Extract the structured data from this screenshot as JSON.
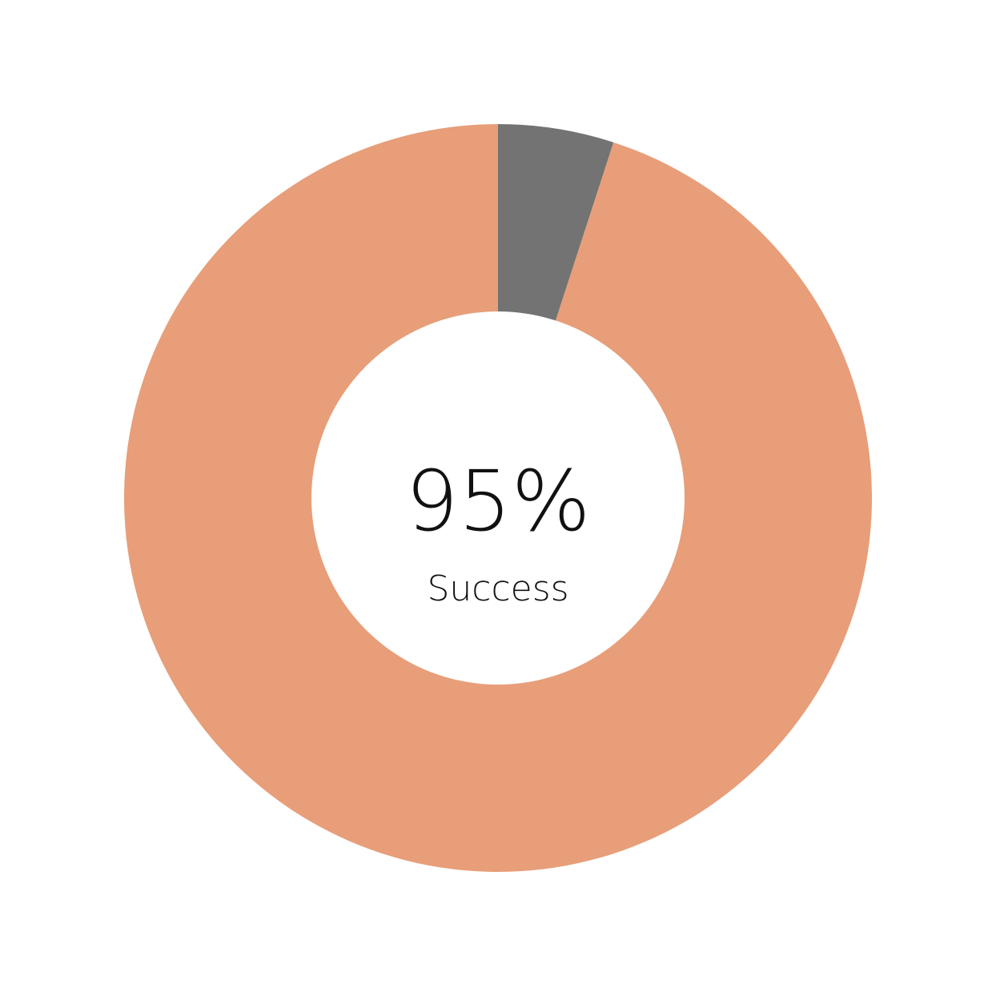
{
  "chart_data": {
    "type": "pie",
    "variant": "donut",
    "slices": [
      {
        "value": 5,
        "color": "#737373"
      },
      {
        "value": 95,
        "color": "#E79E79"
      }
    ],
    "center_value": "95%",
    "center_label": "Success",
    "start_angle": "top",
    "direction": "clockwise",
    "legend": "none"
  }
}
